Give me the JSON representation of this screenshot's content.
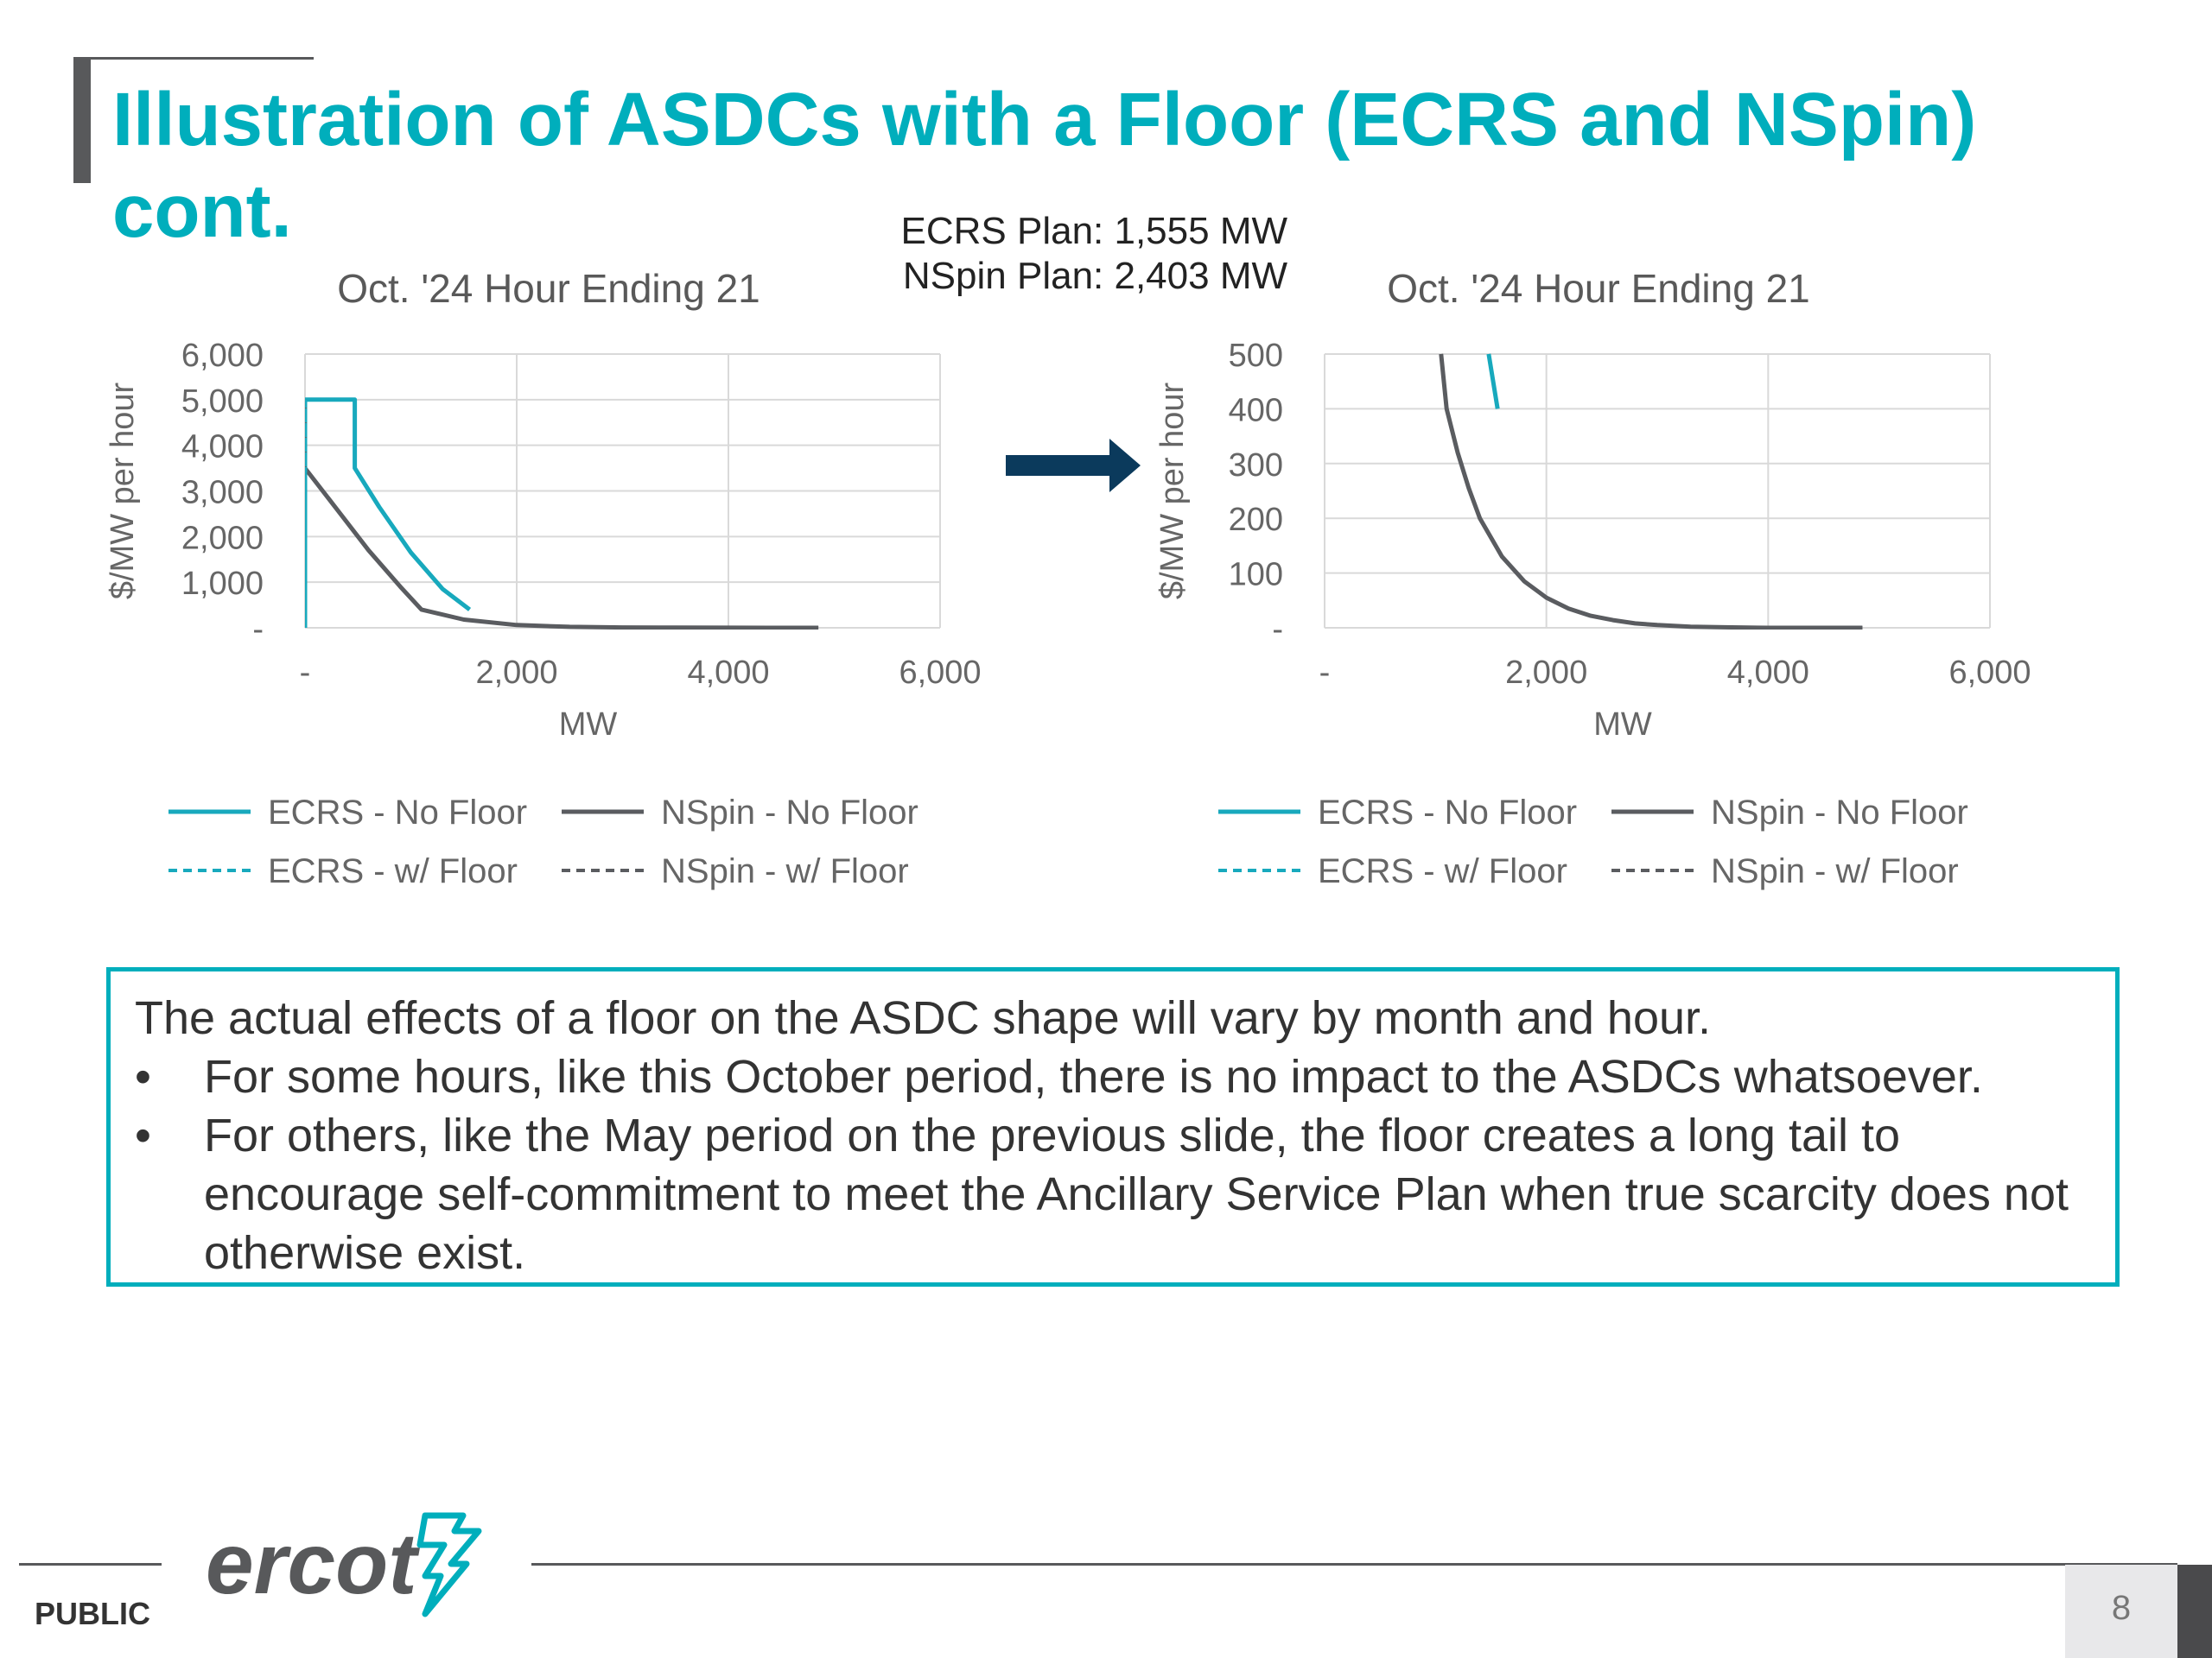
{
  "slide": {
    "title": "Illustration of ASDCs with a Floor (ECRS and NSpin) cont.",
    "plan_ecrs": "ECRS Plan: 1,555 MW",
    "plan_nspin": "NSpin Plan: 2,403 MW",
    "note_intro": "The actual effects of a floor on the ASDC shape will vary by month and hour.",
    "bullet_char": "•",
    "bullets": [
      "For some hours, like this October period, there is no impact to the ASDCs whatsoever.",
      "For others, like the May period on the previous slide, the floor creates a long tail to encourage self-commitment to meet the Ancillary Service Plan when true scarcity does not otherwise exist."
    ],
    "footer_label": "PUBLIC",
    "logo_text": "ercot",
    "page_number": "8",
    "colors": {
      "accent": "#00aebc",
      "ecrs": "#18a9bd",
      "nspin": "#5a5c60",
      "arrow": "#0b3a5c"
    }
  },
  "chart_data": [
    {
      "type": "line",
      "title": "Oct. '24 Hour Ending 21",
      "xlabel": "MW",
      "ylabel": "$/MW per hour",
      "xlim": [
        0,
        6000
      ],
      "ylim": [
        0,
        6000
      ],
      "xticks": [
        0,
        2000,
        4000,
        6000
      ],
      "xtick_labels": [
        "-",
        "2,000",
        "4,000",
        "6,000"
      ],
      "yticks": [
        0,
        1000,
        2000,
        3000,
        4000,
        5000,
        6000
      ],
      "ytick_labels": [
        "-",
        "1,000",
        "2,000",
        "3,000",
        "4,000",
        "5,000",
        "6,000"
      ],
      "grid": true,
      "legend_position": "bottom",
      "series": [
        {
          "name": "ECRS - No Floor",
          "dash": false,
          "color": "#18a9bd",
          "x": [
            0,
            0,
            470,
            470,
            700,
            1000,
            1300,
            1555
          ],
          "y": [
            0,
            5000,
            5000,
            3500,
            2650,
            1650,
            850,
            400
          ]
        },
        {
          "name": "NSpin - No Floor",
          "dash": false,
          "color": "#5a5c60",
          "x": [
            0,
            0,
            300,
            600,
            900,
            1100,
            1500,
            2000,
            2500,
            3000,
            3500,
            4000,
            4500,
            4850
          ],
          "y": [
            5000,
            3500,
            2600,
            1700,
            900,
            400,
            180,
            60,
            20,
            8,
            3,
            1,
            0,
            0
          ]
        },
        {
          "name": "ECRS - w/ Floor",
          "dash": true,
          "color": "#18a9bd",
          "x": [
            0,
            0,
            470,
            470,
            700,
            1000,
            1300,
            1555
          ],
          "y": [
            0,
            5000,
            5000,
            3500,
            2650,
            1650,
            850,
            400
          ]
        },
        {
          "name": "NSpin - w/ Floor",
          "dash": true,
          "color": "#5a5c60",
          "x": [
            0,
            0,
            300,
            600,
            900,
            1100,
            1500,
            2000,
            2500,
            3000,
            3500,
            4000,
            4500,
            4850
          ],
          "y": [
            5000,
            3500,
            2600,
            1700,
            900,
            400,
            180,
            60,
            20,
            8,
            3,
            1,
            0,
            0
          ]
        }
      ]
    },
    {
      "type": "line",
      "title": "Oct. '24 Hour Ending 21",
      "xlabel": "MW",
      "ylabel": "$/MW per hour",
      "xlim": [
        0,
        6000
      ],
      "ylim": [
        0,
        500
      ],
      "xticks": [
        0,
        2000,
        4000,
        6000
      ],
      "xtick_labels": [
        "-",
        "2,000",
        "4,000",
        "6,000"
      ],
      "yticks": [
        0,
        100,
        200,
        300,
        400,
        500
      ],
      "ytick_labels": [
        "-",
        "100",
        "200",
        "300",
        "400",
        "500"
      ],
      "grid": true,
      "legend_position": "bottom",
      "series": [
        {
          "name": "ECRS - No Floor",
          "dash": false,
          "color": "#18a9bd",
          "x": [
            1480,
            1560
          ],
          "y": [
            500,
            400
          ]
        },
        {
          "name": "NSpin - No Floor",
          "dash": false,
          "color": "#5a5c60",
          "x": [
            1050,
            1100,
            1200,
            1300,
            1400,
            1600,
            1800,
            2000,
            2200,
            2400,
            2600,
            2800,
            3000,
            3300,
            3600,
            4000,
            4400,
            4850
          ],
          "y": [
            500,
            400,
            320,
            255,
            200,
            130,
            85,
            55,
            35,
            22,
            14,
            8,
            5,
            2,
            1,
            0,
            0,
            0
          ]
        },
        {
          "name": "ECRS - w/ Floor",
          "dash": true,
          "color": "#18a9bd",
          "x": [
            1480,
            1560
          ],
          "y": [
            500,
            400
          ]
        },
        {
          "name": "NSpin - w/ Floor",
          "dash": true,
          "color": "#5a5c60",
          "x": [
            1050,
            1100,
            1200,
            1300,
            1400,
            1600,
            1800,
            2000,
            2200,
            2400,
            2600,
            2800,
            3000,
            3300,
            3600,
            4000,
            4400,
            4850
          ],
          "y": [
            500,
            400,
            320,
            255,
            200,
            130,
            85,
            55,
            35,
            22,
            14,
            8,
            5,
            2,
            1,
            0,
            0,
            0
          ]
        }
      ]
    }
  ]
}
